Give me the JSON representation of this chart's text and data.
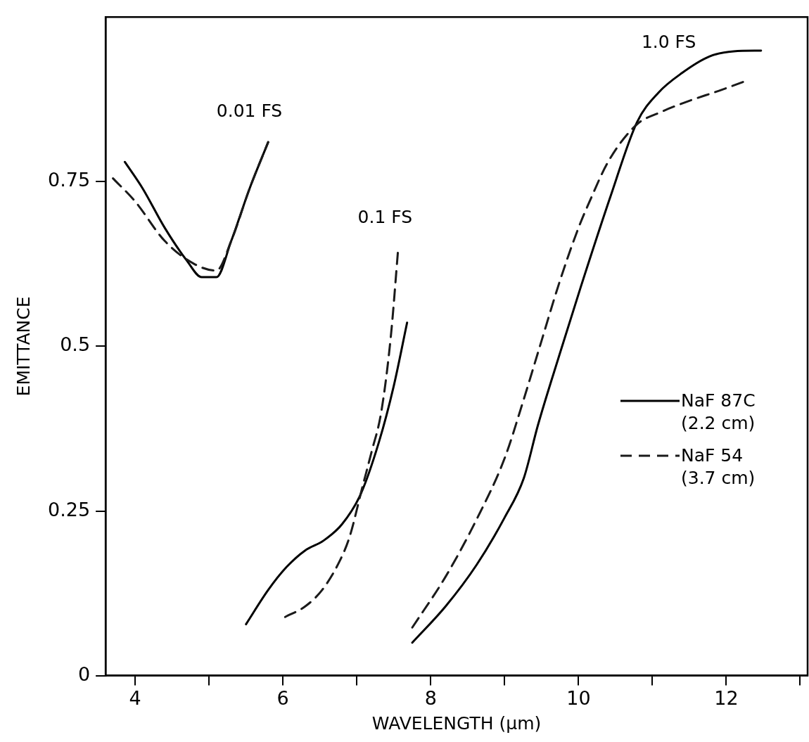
{
  "chart_data": {
    "type": "line",
    "xlabel": "WAVELENGTH (μm)",
    "ylabel": "EMITTANCE",
    "xlim": [
      3.6,
      13.1
    ],
    "xticks": [
      4,
      {
        "value": 5,
        "label": null
      },
      6,
      {
        "value": 7,
        "label": null
      },
      8,
      {
        "value": 9,
        "label": null
      },
      10,
      {
        "value": 11,
        "label": null
      },
      12,
      {
        "value": 13,
        "label": null
      }
    ],
    "ylim": [
      0,
      1
    ],
    "yticks": [
      0,
      0.25,
      0.5,
      0.75
    ],
    "grid": false,
    "legend": "right",
    "marker": "none",
    "series": [
      {
        "name": "NaF 87C (2.2 cm)",
        "color": "#000000",
        "line_style": "solid",
        "x": [
          3.86,
          4.1,
          4.4,
          4.7,
          4.9,
          5.1,
          5.3,
          5.55,
          5.8,
          null,
          5.5,
          5.8,
          6.05,
          6.3,
          6.55,
          6.8,
          7.05,
          7.3,
          7.5,
          7.68,
          null,
          7.75,
          8.2,
          8.62,
          9.0,
          9.26,
          9.45,
          9.75,
          10.03,
          10.44,
          10.79,
          11.08,
          11.4,
          11.77,
          12.1,
          12.47
        ],
        "values": [
          0.78,
          0.74,
          0.68,
          0.63,
          0.605,
          0.605,
          0.66,
          0.74,
          0.81,
          null,
          0.078,
          0.13,
          0.165,
          0.19,
          0.205,
          0.23,
          0.275,
          0.355,
          0.44,
          0.536,
          null,
          0.05,
          0.105,
          0.168,
          0.24,
          0.3,
          0.38,
          0.49,
          0.59,
          0.73,
          0.84,
          0.885,
          0.915,
          0.94,
          0.948,
          0.949
        ]
      },
      {
        "name": "NaF 54 (3.7 cm)",
        "color": "#1a1a1a",
        "line_style": "dashed",
        "x": [
          3.7,
          4.0,
          4.4,
          4.8,
          5.1,
          5.3,
          5.55,
          5.8,
          null,
          6.03,
          6.3,
          6.53,
          6.75,
          6.9,
          7.07,
          7.2,
          7.33,
          7.46,
          7.56,
          null,
          7.75,
          8.2,
          8.62,
          9.0,
          9.26,
          9.45,
          9.75,
          10.0,
          10.15,
          10.4,
          10.79,
          11.1,
          11.48,
          11.9,
          12.29
        ],
        "values": [
          0.755,
          0.72,
          0.66,
          0.625,
          0.615,
          0.66,
          0.74,
          0.81,
          null,
          0.089,
          0.105,
          0.13,
          0.17,
          0.21,
          0.284,
          0.34,
          0.4,
          0.515,
          0.649,
          null,
          0.073,
          0.15,
          0.237,
          0.33,
          0.42,
          0.49,
          0.6,
          0.68,
          0.72,
          0.78,
          0.837,
          0.855,
          0.872,
          0.888,
          0.904
        ]
      }
    ],
    "annotations": [
      {
        "text": "0.01 FS",
        "x": 5.8,
        "y": 0.81
      },
      {
        "text": "0.1 FS",
        "x": 7.56,
        "y": 0.649
      },
      {
        "text": "1.0 FS",
        "x": 11.4,
        "y": 0.915
      }
    ]
  }
}
